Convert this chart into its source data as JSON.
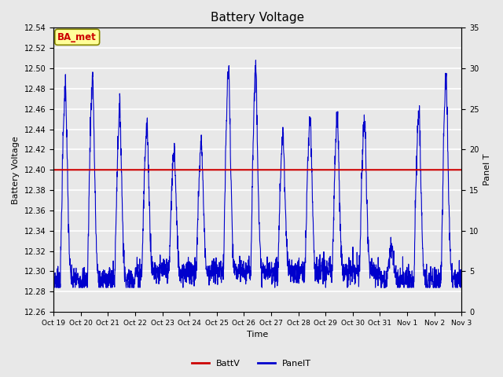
{
  "title": "Battery Voltage",
  "ylabel_left": "Battery Voltage",
  "ylabel_right": "Panel T",
  "xlabel": "Time",
  "ylim_left": [
    12.26,
    12.54
  ],
  "ylim_right": [
    0,
    35
  ],
  "yticks_left": [
    12.26,
    12.28,
    12.3,
    12.32,
    12.34,
    12.36,
    12.38,
    12.4,
    12.42,
    12.44,
    12.46,
    12.48,
    12.5,
    12.52,
    12.54
  ],
  "yticks_right": [
    0,
    5,
    10,
    15,
    20,
    25,
    30,
    35
  ],
  "xtick_labels": [
    "Oct 19",
    "Oct 20",
    "Oct 21",
    "Oct 22",
    "Oct 23",
    "Oct 24",
    "Oct 25",
    "Oct 26",
    "Oct 27",
    "Oct 28",
    "Oct 29",
    "Oct 30",
    "Oct 31",
    "Nov 1",
    "Nov 2",
    "Nov 3"
  ],
  "battv_value": 12.4,
  "fig_bg_color": "#e8e8e8",
  "plot_bg_color": "#e8e8e8",
  "grid_color": "#ffffff",
  "battv_color": "#cc0000",
  "panelt_color": "#0000cc",
  "annotation_text": "BA_met",
  "annotation_bg": "#ffff99",
  "annotation_border": "#888800",
  "annotation_text_color": "#cc0000",
  "n_days": 15,
  "panelt_min": 3,
  "panelt_max": 31
}
